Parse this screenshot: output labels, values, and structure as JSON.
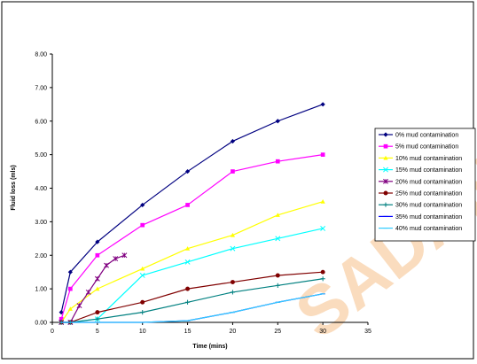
{
  "chart_data": {
    "type": "line",
    "title": "",
    "xlabel": "Time (mins)",
    "ylabel": "Fluid loss (mls)",
    "xlim": [
      0,
      35
    ],
    "ylim": [
      0,
      8
    ],
    "xticks": [
      0,
      5,
      10,
      15,
      20,
      25,
      30,
      35
    ],
    "yticks": [
      0,
      1,
      2,
      3,
      4,
      5,
      6,
      7,
      8
    ],
    "xtick_labels": [
      "0",
      "5",
      "10",
      "15",
      "20",
      "25",
      "30",
      "35"
    ],
    "ytick_labels": [
      "0.00",
      "1.00",
      "2.00",
      "3.00",
      "4.00",
      "5.00",
      "6.00",
      "7.00",
      "8.00"
    ],
    "grid": false,
    "legend_position": "right",
    "series": [
      {
        "name": "0% mud contamination",
        "color": "#000080",
        "marker": "diamond",
        "x": [
          1,
          2,
          5,
          10,
          15,
          20,
          25,
          30
        ],
        "y": [
          0.3,
          1.5,
          2.4,
          3.5,
          4.5,
          5.4,
          6.0,
          6.5
        ]
      },
      {
        "name": "5% mud contamination",
        "color": "#ff00ff",
        "marker": "square",
        "x": [
          1,
          2,
          5,
          10,
          15,
          20,
          25,
          30
        ],
        "y": [
          0.1,
          1.0,
          2.0,
          2.9,
          3.5,
          4.5,
          4.8,
          5.0
        ]
      },
      {
        "name": "10% mud contamination",
        "color": "#ffff00",
        "marker": "triangle",
        "x": [
          1,
          2,
          5,
          10,
          15,
          20,
          25,
          30
        ],
        "y": [
          0.0,
          0.4,
          1.0,
          1.6,
          2.2,
          2.6,
          3.2,
          3.6
        ]
      },
      {
        "name": "15% mud contamination",
        "color": "#00ffff",
        "marker": "x",
        "x": [
          1,
          2,
          5,
          10,
          15,
          20,
          25,
          30
        ],
        "y": [
          0.0,
          0.0,
          0.1,
          1.4,
          1.8,
          2.2,
          2.5,
          2.8
        ]
      },
      {
        "name": "20% mud contamination",
        "color": "#800080",
        "marker": "star",
        "x": [
          1,
          2,
          3,
          4,
          5,
          6,
          7,
          8
        ],
        "y": [
          0.0,
          0.0,
          0.5,
          0.9,
          1.3,
          1.7,
          1.9,
          2.0
        ]
      },
      {
        "name": "25% mud contamination",
        "color": "#800000",
        "marker": "circle",
        "x": [
          1,
          2,
          5,
          10,
          15,
          20,
          25,
          30
        ],
        "y": [
          0.0,
          0.0,
          0.3,
          0.6,
          1.0,
          1.2,
          1.4,
          1.5
        ]
      },
      {
        "name": "30% mud contamination",
        "color": "#008080",
        "marker": "plus",
        "x": [
          1,
          2,
          5,
          10,
          15,
          20,
          25,
          30
        ],
        "y": [
          0.0,
          0.0,
          0.1,
          0.3,
          0.6,
          0.9,
          1.1,
          1.3
        ]
      },
      {
        "name": "35% mud contamination",
        "color": "#0000ff",
        "marker": "dash",
        "x": [
          1,
          2,
          5,
          10,
          15,
          20,
          25,
          30
        ],
        "y": [
          0.0,
          0.0,
          0.0,
          0.0,
          0.05,
          0.3,
          0.6,
          0.85
        ]
      },
      {
        "name": "40% mud contamination",
        "color": "#33ccff",
        "marker": "dash",
        "x": [
          1,
          2,
          5,
          10,
          15,
          20,
          25,
          30
        ],
        "y": [
          0.0,
          0.0,
          0.0,
          0.0,
          0.05,
          0.3,
          0.6,
          0.85
        ]
      }
    ]
  },
  "watermark": {
    "text": "SADAN",
    "color": "#f6c08a"
  }
}
